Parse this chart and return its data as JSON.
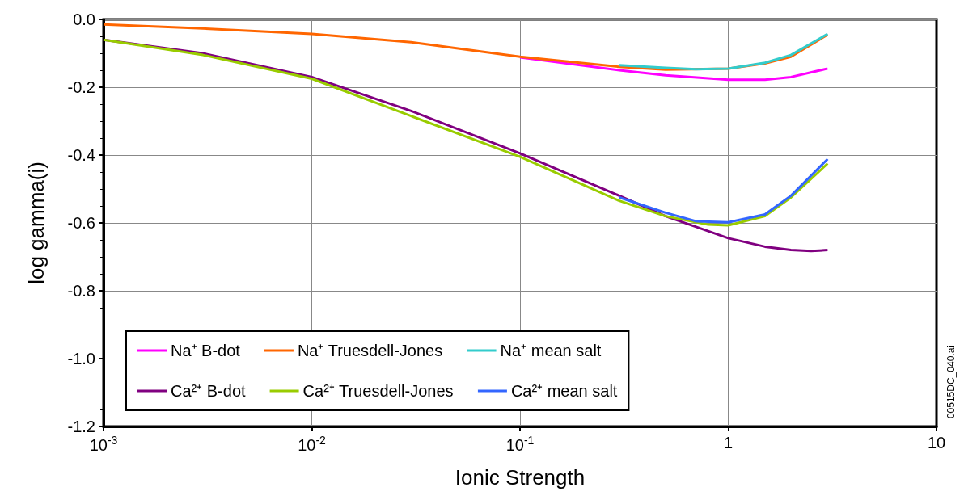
{
  "chart_data": {
    "type": "line",
    "xlabel": "Ionic Strength",
    "ylabel": "log gamma(i)",
    "log": "x",
    "grid": true,
    "legend": "bottom left",
    "marker": "none",
    "line_style": "solid",
    "xlim": [
      0.001,
      10
    ],
    "xticks": [
      {
        "value": 0.001,
        "label": "10$^{-3}$"
      },
      {
        "value": 0.01,
        "label": "10$^{-2}$"
      },
      {
        "value": 0.1,
        "label": "10$^{-1}$"
      },
      1,
      10
    ],
    "ylim": [
      -1.2,
      0
    ],
    "yticks": [
      {
        "value": -1.2,
        "label": "-1.2"
      },
      {
        "value": -1,
        "label": "-1.0"
      },
      -0.8,
      -0.6,
      -0.4,
      -0.2,
      {
        "value": 0,
        "label": "0.0"
      }
    ],
    "annotations": [
      "00515DC_040.ai"
    ],
    "series": [
      {
        "name": "Na⁺ B-dot",
        "color": "#ff00ff",
        "x": [
          0.1,
          0.3,
          0.5,
          1,
          1.5,
          2,
          3
        ],
        "values": [
          -0.112,
          -0.15,
          -0.165,
          -0.178,
          -0.178,
          -0.17,
          -0.145
        ]
      },
      {
        "name": "Na⁺ Truesdell-Jones",
        "color": "#ff6600",
        "x": [
          0.001,
          0.003,
          0.01,
          0.03,
          0.1,
          0.3,
          0.5,
          1,
          1.5,
          2,
          3
        ],
        "values": [
          -0.015,
          -0.027,
          -0.043,
          -0.067,
          -0.11,
          -0.14,
          -0.148,
          -0.145,
          -0.13,
          -0.11,
          -0.045
        ]
      },
      {
        "name": "Na⁺ mean salt",
        "color": "#33cccc",
        "x": [
          0.3,
          0.5,
          0.7,
          1,
          1.5,
          2,
          3
        ],
        "values": [
          -0.135,
          -0.143,
          -0.147,
          -0.145,
          -0.128,
          -0.105,
          -0.043
        ]
      },
      {
        "name": "Ca²⁺ B-dot",
        "color": "#800080",
        "x": [
          0.001,
          0.003,
          0.01,
          0.03,
          0.1,
          0.3,
          0.5,
          1,
          1.5,
          2,
          2.5,
          3
        ],
        "values": [
          -0.06,
          -0.1,
          -0.17,
          -0.27,
          -0.395,
          -0.52,
          -0.58,
          -0.645,
          -0.67,
          -0.68,
          -0.683,
          -0.68
        ]
      },
      {
        "name": "Ca²⁺ Truesdell-Jones",
        "color": "#99cc00",
        "x": [
          0.001,
          0.003,
          0.01,
          0.03,
          0.1,
          0.3,
          0.5,
          0.8,
          1,
          1.5,
          2,
          3
        ],
        "values": [
          -0.06,
          -0.105,
          -0.175,
          -0.285,
          -0.405,
          -0.535,
          -0.58,
          -0.605,
          -0.607,
          -0.58,
          -0.525,
          -0.425
        ]
      },
      {
        "name": "Ca²⁺ mean salt",
        "color": "#3366ff",
        "x": [
          0.3,
          0.5,
          0.7,
          1,
          1.5,
          2,
          3
        ],
        "values": [
          -0.525,
          -0.57,
          -0.595,
          -0.598,
          -0.575,
          -0.52,
          -0.412
        ]
      }
    ]
  }
}
